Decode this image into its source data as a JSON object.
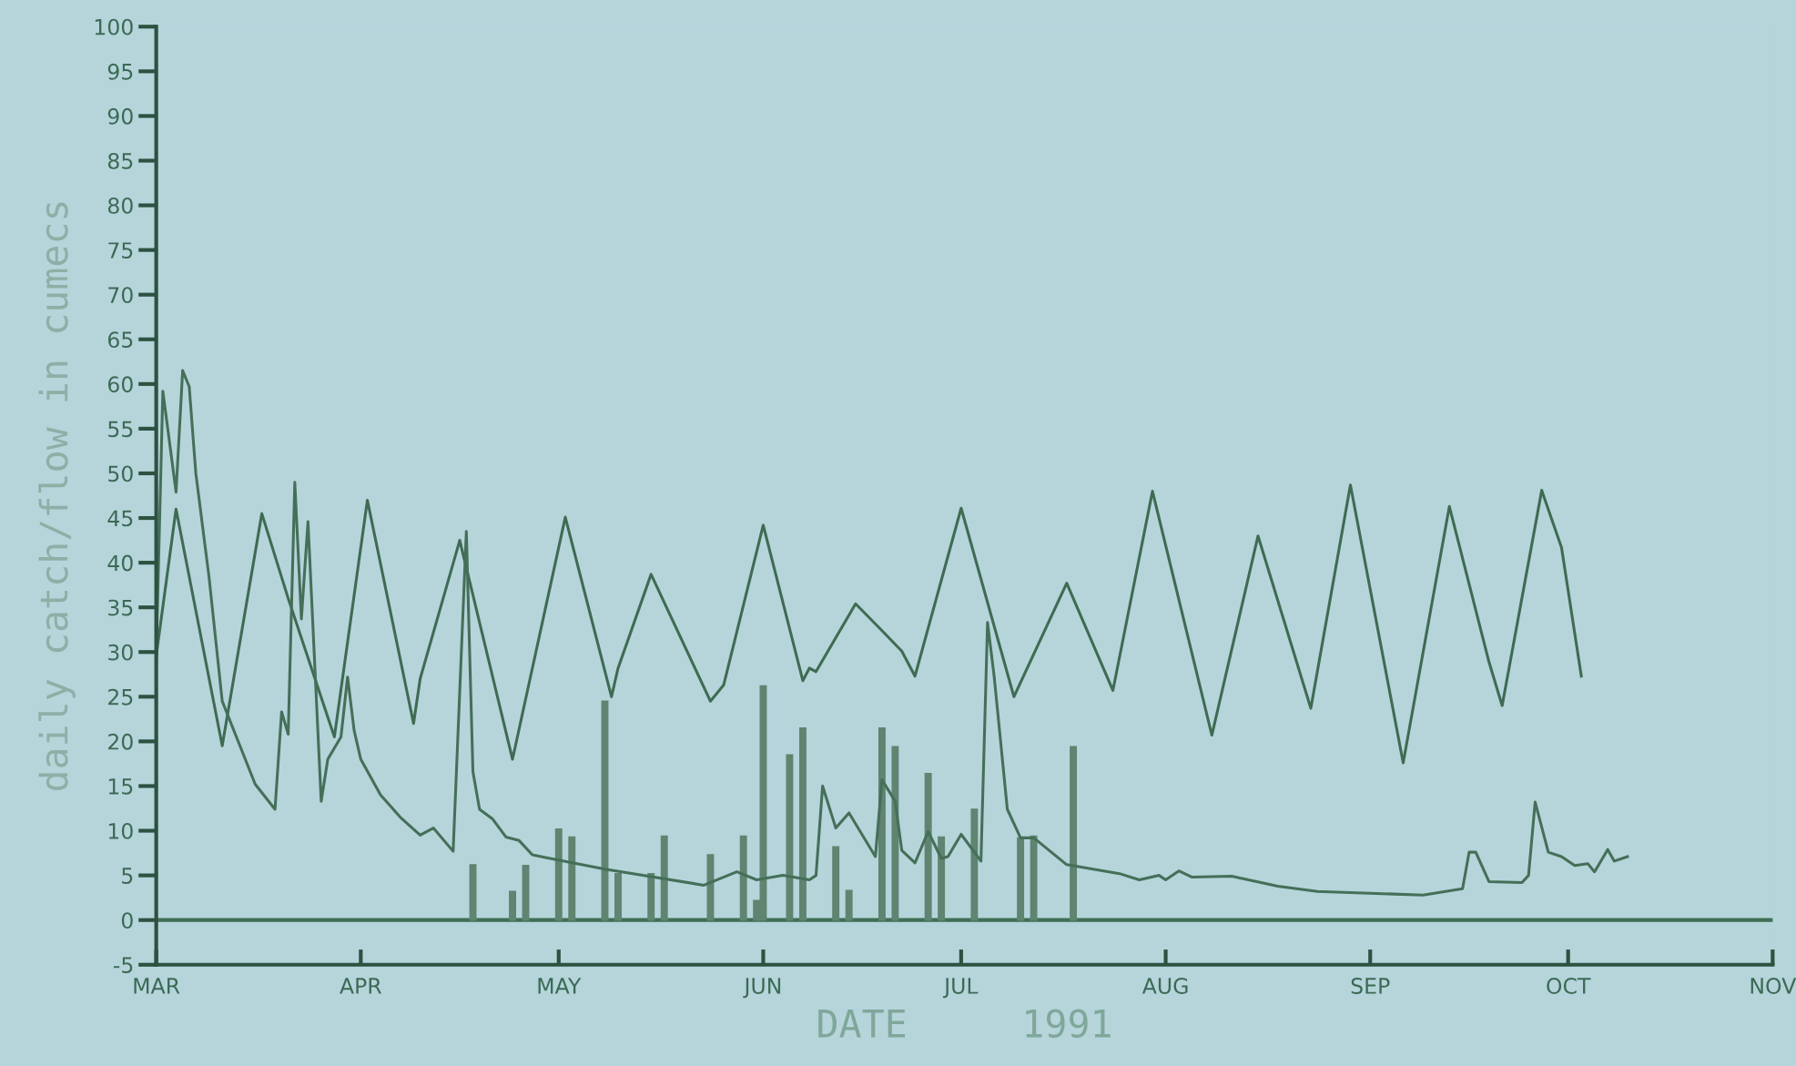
{
  "chart_data": {
    "type": "line",
    "xlabel": "DATE     1991",
    "ylabel": "daily catch/flow in cumecs",
    "xlim": [
      "1991-03-01",
      "1991-11-01"
    ],
    "xticks": [
      {
        "value": "1991-03-01",
        "label": "MAR"
      },
      {
        "value": "1991-04-01",
        "label": "APR"
      },
      {
        "value": "1991-05-01",
        "label": "MAY"
      },
      {
        "value": "1991-06-01",
        "label": "JUN"
      },
      {
        "value": "1991-07-01",
        "label": "JUL"
      },
      {
        "value": "1991-08-01",
        "label": "AUG"
      },
      {
        "value": "1991-09-01",
        "label": "SEP"
      },
      {
        "value": "1991-10-01",
        "label": "OCT"
      },
      {
        "value": "1991-11-01",
        "label": "NOV"
      }
    ],
    "ylim": [
      -5,
      100
    ],
    "yticks": [
      -5,
      0,
      5,
      10,
      15,
      20,
      25,
      30,
      35,
      40,
      45,
      50,
      55,
      60,
      65,
      70,
      75,
      80,
      85,
      90,
      95,
      100
    ],
    "ref_lines": [
      {
        "axis": "y",
        "value": 0,
        "color": "#3f6e55"
      }
    ],
    "series": [
      {
        "color": "#3f6b52",
        "x": [
          "1991-03-01",
          "1991-03-04",
          "1991-03-11",
          "1991-03-17",
          "1991-03-21",
          "1991-03-28",
          "1991-04-02",
          "1991-04-09",
          "1991-04-10",
          "1991-04-16",
          "1991-04-24",
          "1991-05-02",
          "1991-05-09",
          "1991-05-10",
          "1991-05-15",
          "1991-05-24",
          "1991-05-26",
          "1991-06-01",
          "1991-06-07",
          "1991-06-08",
          "1991-06-09",
          "1991-06-15",
          "1991-06-19",
          "1991-06-22",
          "1991-06-24",
          "1991-07-01",
          "1991-07-09",
          "1991-07-17",
          "1991-07-24",
          "1991-07-30",
          "1991-08-08",
          "1991-08-15",
          "1991-08-23",
          "1991-08-29",
          "1991-09-06",
          "1991-09-13",
          "1991-09-19",
          "1991-09-21",
          "1991-09-27",
          "1991-09-30",
          "1991-10-03"
        ],
        "values": [
          29.6,
          46,
          19.5,
          45.5,
          36,
          20.5,
          47,
          22,
          27,
          42.5,
          18,
          45.1,
          25,
          28.2,
          38.7,
          24.5,
          26.3,
          44.2,
          26.8,
          28.2,
          27.8,
          35.4,
          32.4,
          30.1,
          27.3,
          46.1,
          25,
          37.7,
          25.7,
          48,
          20.7,
          43,
          23.7,
          48.7,
          17.6,
          46.3,
          28.9,
          24,
          48.1,
          41.7,
          27.3
        ]
      },
      {
        "color": "#456f58",
        "x": [
          "1991-03-01",
          "1991-03-02",
          "1991-03-04",
          "1991-03-05",
          "1991-03-06",
          "1991-03-07",
          "1991-03-09",
          "1991-03-11",
          "1991-03-16",
          "1991-03-19",
          "1991-03-20",
          "1991-03-21",
          "1991-03-22",
          "1991-03-23",
          "1991-03-24",
          "1991-03-26",
          "1991-03-27",
          "1991-03-29",
          "1991-03-30",
          "1991-03-31",
          "1991-04-01",
          "1991-04-04",
          "1991-04-07",
          "1991-04-10",
          "1991-04-12",
          "1991-04-15",
          "1991-04-17",
          "1991-04-18",
          "1991-04-19",
          "1991-04-21",
          "1991-04-23",
          "1991-04-25",
          "1991-04-27",
          "1991-04-29",
          "1991-05-08",
          "1991-05-23",
          "1991-05-28",
          "1991-05-31",
          "1991-06-04",
          "1991-06-08",
          "1991-06-09",
          "1991-06-10",
          "1991-06-12",
          "1991-06-14",
          "1991-06-18",
          "1991-06-19",
          "1991-06-21",
          "1991-06-22",
          "1991-06-24",
          "1991-06-26",
          "1991-06-28",
          "1991-06-29",
          "1991-07-01",
          "1991-07-04",
          "1991-07-05",
          "1991-07-06",
          "1991-07-08",
          "1991-07-10",
          "1991-07-12",
          "1991-07-17",
          "1991-07-25",
          "1991-07-28",
          "1991-07-31",
          "1991-08-01",
          "1991-08-03",
          "1991-08-05",
          "1991-08-11",
          "1991-08-18",
          "1991-08-24",
          "1991-09-09",
          "1991-09-15",
          "1991-09-16",
          "1991-09-17",
          "1991-09-19",
          "1991-09-24",
          "1991-09-25",
          "1991-09-26",
          "1991-09-28",
          "1991-09-30",
          "1991-10-02",
          "1991-10-04",
          "1991-10-05",
          "1991-10-07",
          "1991-10-08",
          "1991-10-10"
        ],
        "values": [
          29.6,
          59.2,
          47.9,
          61.5,
          59.7,
          50,
          38.4,
          24.5,
          15.2,
          12.4,
          23.3,
          20.8,
          49,
          33.7,
          44.6,
          13.3,
          18,
          20.5,
          27.2,
          21.2,
          18,
          14,
          11.5,
          9.5,
          10.3,
          7.7,
          43.5,
          16.6,
          12.4,
          11.3,
          9.3,
          8.9,
          7.3,
          7,
          5.7,
          3.9,
          5.4,
          4.5,
          5,
          4.5,
          5,
          15,
          10.3,
          12,
          7.1,
          15.7,
          13.3,
          7.8,
          6.4,
          9.9,
          6.9,
          7.1,
          9.6,
          6.6,
          33.3,
          27.3,
          12.4,
          9.2,
          9.2,
          6.2,
          5.2,
          4.5,
          5,
          4.5,
          5.5,
          4.8,
          4.9,
          3.8,
          3.2,
          2.8,
          3.5,
          7.6,
          7.6,
          4.3,
          4.2,
          5,
          13.2,
          7.6,
          7.1,
          6.1,
          6.3,
          5.4,
          7.9,
          6.6,
          7.1
        ]
      },
      {
        "type": "bar",
        "color": "#5f8470",
        "x": [
          "1991-04-18",
          "1991-04-24",
          "1991-04-26",
          "1991-05-01",
          "1991-05-03",
          "1991-05-08",
          "1991-05-10",
          "1991-05-15",
          "1991-05-17",
          "1991-05-24",
          "1991-05-29",
          "1991-05-31",
          "1991-06-01",
          "1991-06-05",
          "1991-06-07",
          "1991-06-12",
          "1991-06-14",
          "1991-06-19",
          "1991-06-21",
          "1991-06-26",
          "1991-06-28",
          "1991-07-03",
          "1991-07-10",
          "1991-07-12",
          "1991-07-18"
        ],
        "values": [
          6.2,
          3.2,
          6.1,
          10.2,
          9.3,
          24.5,
          5.2,
          5.2,
          9.4,
          7.3,
          9.4,
          2.2,
          26.2,
          18.5,
          21.5,
          8.2,
          3.3,
          21.5,
          19.4,
          16.4,
          9.3,
          12.4,
          9.2,
          9.4,
          19.4
        ]
      }
    ]
  }
}
